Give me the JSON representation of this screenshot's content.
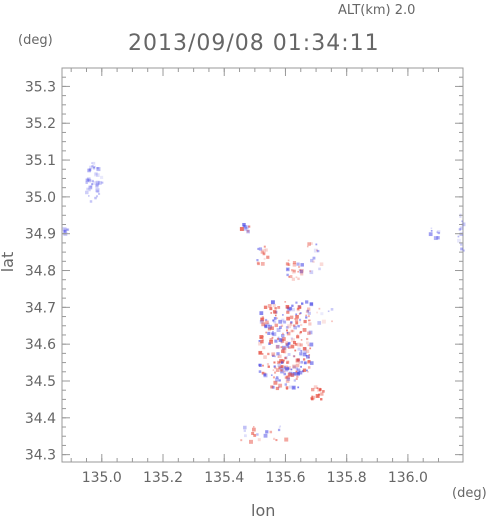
{
  "chart_data": {
    "type": "scatter",
    "title": "2013/09/08 01:34:11",
    "altitude_label": "ALT(km) 2.0",
    "xlabel": "lon",
    "ylabel": "lat",
    "x_unit": "(deg)",
    "y_unit": "(deg)",
    "xlim": [
      134.87,
      136.18
    ],
    "ylim": [
      34.28,
      35.35
    ],
    "x_ticks": [
      135.0,
      135.2,
      135.4,
      135.6,
      135.8,
      136.0
    ],
    "x_tick_labels": [
      "135.0",
      "135.2",
      "135.4",
      "135.6",
      "135.8",
      "136.0"
    ],
    "y_ticks": [
      34.3,
      34.4,
      34.5,
      34.6,
      34.7,
      34.8,
      34.9,
      35.0,
      35.1,
      35.2,
      35.3
    ],
    "y_tick_labels": [
      "34.3",
      "34.4",
      "34.5",
      "34.6",
      "34.7",
      "34.8",
      "34.9",
      "35.0",
      "35.1",
      "35.2",
      "35.3"
    ],
    "grid": false,
    "colors": {
      "positive": "#e64a3c",
      "negative": "#4a4ae6",
      "axis": "#999999"
    },
    "clusters": [
      {
        "lon": [
          134.94,
          135.0
        ],
        "lat": [
          34.99,
          35.1
        ],
        "tone": "negative",
        "density": 40,
        "intensity": 0.45
      },
      {
        "lon": [
          134.87,
          134.89
        ],
        "lat": [
          34.9,
          34.92
        ],
        "tone": "negative",
        "density": 8,
        "intensity": 0.5
      },
      {
        "lon": [
          135.45,
          135.48
        ],
        "lat": [
          34.91,
          34.93
        ],
        "tone": "mixed",
        "density": 10,
        "intensity": 0.7
      },
      {
        "lon": [
          135.5,
          135.54
        ],
        "lat": [
          34.82,
          34.87
        ],
        "tone": "mixed",
        "density": 14,
        "intensity": 0.6
      },
      {
        "lon": [
          135.6,
          135.65
        ],
        "lat": [
          34.78,
          34.83
        ],
        "tone": "mixed",
        "density": 25,
        "intensity": 0.6
      },
      {
        "lon": [
          135.67,
          135.72
        ],
        "lat": [
          34.8,
          34.88
        ],
        "tone": "mixed",
        "density": 14,
        "intensity": 0.55
      },
      {
        "lon": [
          135.51,
          135.68
        ],
        "lat": [
          34.52,
          34.72
        ],
        "tone": "mixed",
        "density": 260,
        "intensity": 0.75
      },
      {
        "lon": [
          135.55,
          135.65
        ],
        "lat": [
          34.48,
          34.54
        ],
        "tone": "mixed",
        "density": 40,
        "intensity": 0.7
      },
      {
        "lon": [
          135.68,
          135.72
        ],
        "lat": [
          34.45,
          34.49
        ],
        "tone": "positive",
        "density": 16,
        "intensity": 0.85
      },
      {
        "lon": [
          135.45,
          135.62
        ],
        "lat": [
          34.34,
          34.38
        ],
        "tone": "mixed",
        "density": 20,
        "intensity": 0.6
      },
      {
        "lon": [
          136.06,
          136.1
        ],
        "lat": [
          34.89,
          34.92
        ],
        "tone": "negative",
        "density": 8,
        "intensity": 0.55
      },
      {
        "lon": [
          136.16,
          136.18
        ],
        "lat": [
          34.84,
          34.96
        ],
        "tone": "negative",
        "density": 12,
        "intensity": 0.45
      },
      {
        "lon": [
          135.7,
          135.75
        ],
        "lat": [
          34.66,
          34.7
        ],
        "tone": "mixed",
        "density": 8,
        "intensity": 0.4
      }
    ]
  }
}
